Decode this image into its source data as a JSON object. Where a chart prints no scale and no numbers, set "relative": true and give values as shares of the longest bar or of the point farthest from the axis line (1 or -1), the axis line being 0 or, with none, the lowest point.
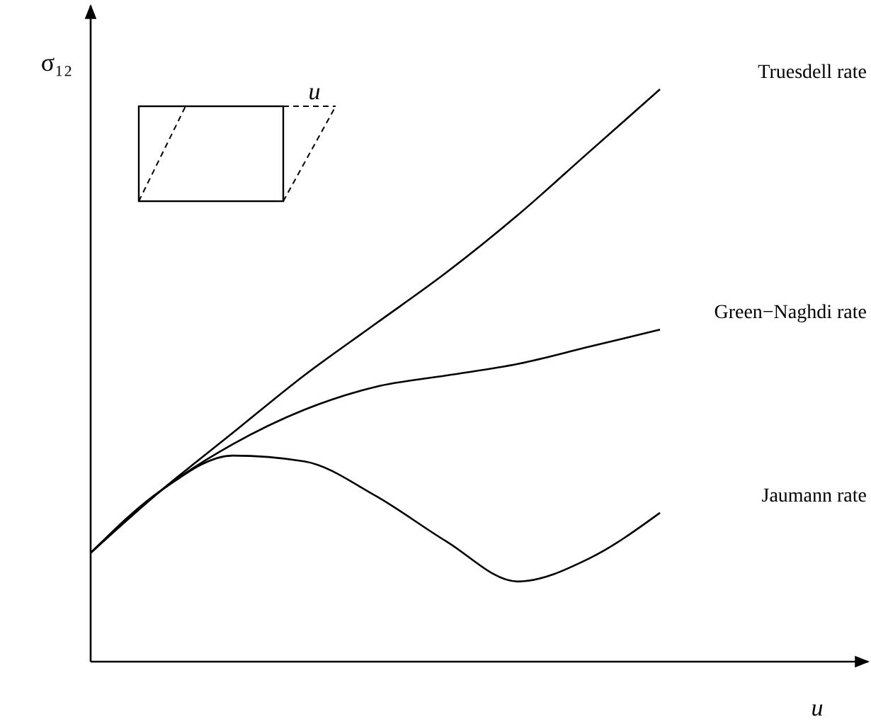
{
  "chart_data": {
    "type": "line",
    "relative": true,
    "xlabel": "u",
    "ylabel": "σ₁₂",
    "annotations": [
      "u"
    ],
    "categories": [
      null,
      null,
      null,
      null,
      null,
      null,
      null,
      null,
      null
    ],
    "series": [
      {
        "name": "Truesdell rate",
        "color": "#000000",
        "values": [
          0.19,
          0.3,
          0.4,
          0.5,
          0.59,
          0.68,
          0.78,
          0.89,
          1.0
        ]
      },
      {
        "name": "Green−Naghdi rate",
        "color": "#000000",
        "values": [
          0.19,
          0.3,
          0.38,
          0.44,
          0.48,
          0.5,
          0.52,
          0.55,
          0.58
        ]
      },
      {
        "name": "Jaumann rate",
        "color": "#000000",
        "values": [
          0.19,
          0.3,
          0.36,
          0.35,
          0.29,
          0.21,
          0.14,
          0.18,
          0.26
        ]
      }
    ]
  }
}
